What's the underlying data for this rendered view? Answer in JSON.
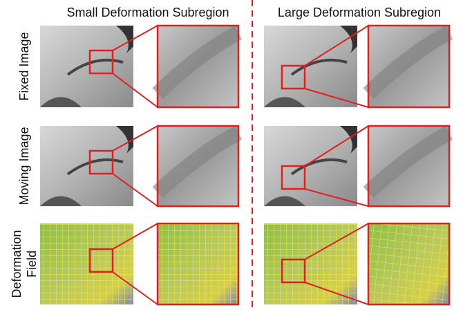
{
  "columns": [
    "Small Deformation Subregion",
    "Large Deformation Subregion"
  ],
  "rows": [
    [
      "Fixed Image"
    ],
    [
      "Moving Image"
    ],
    [
      "Deformation",
      "Field"
    ]
  ]
}
